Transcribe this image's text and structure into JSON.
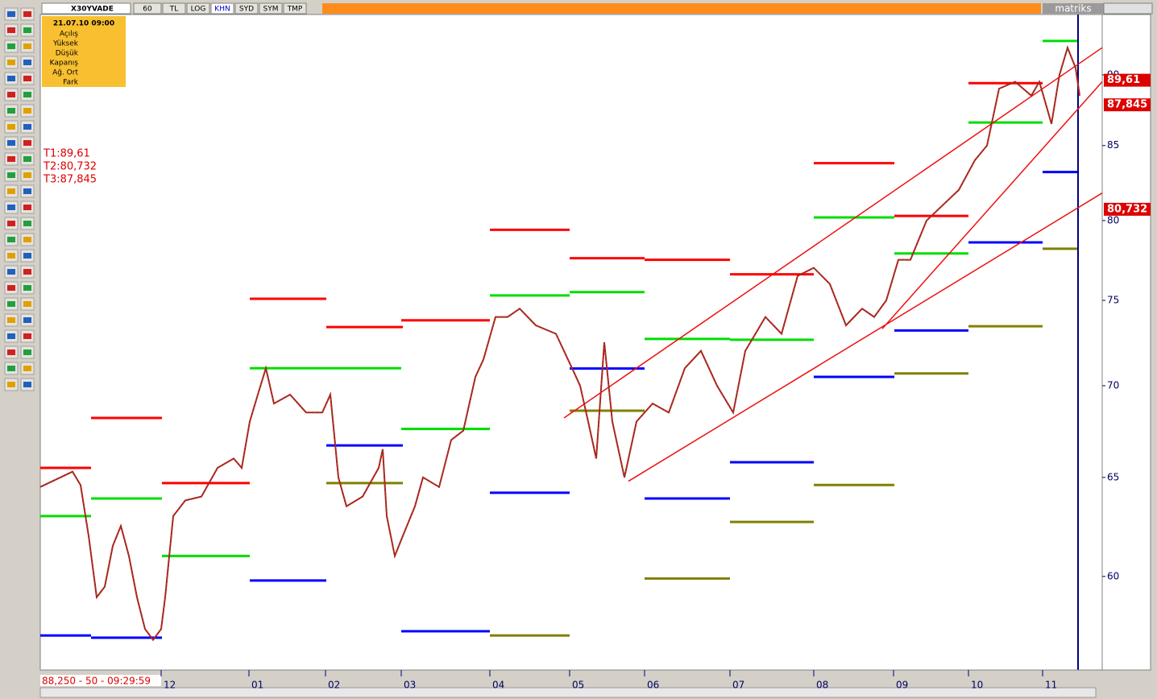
{
  "toolbar": {
    "symbol": "X30YVADE",
    "buttons": [
      "60",
      "TL",
      "LOG",
      "KHN",
      "SYD",
      "SYM",
      "TMP"
    ],
    "brand": "matriks"
  },
  "info_box": {
    "date": "21.07.10 09:00",
    "labels": [
      "Açılış",
      "Yüksek",
      "Düşük",
      "Kapanış",
      "Ağ. Ort",
      "Fark"
    ]
  },
  "targets": [
    "T1:89,61",
    "T2:80,732",
    "T3:87,845"
  ],
  "status": "88,250 - 50 - 09:29:59",
  "chart_data": {
    "type": "line",
    "log": true,
    "xlim": [
      0,
      1318
    ],
    "ylim": [
      55.7,
      94.5
    ],
    "yticks": [
      60,
      65,
      70,
      75,
      80,
      85,
      90
    ],
    "xticks": [
      {
        "value": 150,
        "label": "12"
      },
      {
        "value": 259,
        "label": "01"
      },
      {
        "value": 354,
        "label": "02"
      },
      {
        "value": 448,
        "label": "03"
      },
      {
        "value": 558,
        "label": "04"
      },
      {
        "value": 657,
        "label": "05"
      },
      {
        "value": 750,
        "label": "06"
      },
      {
        "value": 856,
        "label": "07"
      },
      {
        "value": 960,
        "label": "08"
      },
      {
        "value": 1059,
        "label": "09"
      },
      {
        "value": 1152,
        "label": "10"
      },
      {
        "value": 1244,
        "label": "11"
      }
    ],
    "series": [
      {
        "color": "#cc1010",
        "x": [
          0,
          40,
          50,
          60,
          70,
          80,
          90,
          100,
          110,
          120,
          130,
          140,
          150,
          155,
          165,
          180,
          200,
          220,
          240,
          250,
          260,
          270,
          280,
          290,
          310,
          330,
          350,
          360,
          370,
          380,
          400,
          420,
          425,
          430,
          440,
          450,
          465,
          475,
          495,
          510,
          525,
          540,
          550,
          565,
          580,
          595,
          615,
          640,
          660,
          670,
          680,
          690,
          700,
          710,
          725,
          740,
          760,
          780,
          800,
          820,
          840,
          860,
          875,
          900,
          920,
          940,
          960,
          980,
          1000,
          1020,
          1035,
          1050,
          1065,
          1080,
          1100,
          1120,
          1140,
          1160,
          1175,
          1190,
          1210,
          1230,
          1240,
          1250,
          1255,
          1265,
          1275,
          1285,
          1290
        ],
        "values": [
          64.5,
          65.3,
          64.6,
          62,
          59,
          59.5,
          61.5,
          62.5,
          61,
          59,
          57.5,
          57,
          57.5,
          59,
          63,
          63.8,
          64,
          65.5,
          66,
          65.5,
          68,
          69.5,
          71,
          69,
          69.5,
          68.5,
          68.5,
          69.5,
          65,
          63.5,
          64,
          65.5,
          66.5,
          63,
          61,
          62,
          63.5,
          65,
          64.5,
          67,
          67.5,
          70.5,
          71.5,
          74,
          74,
          74.5,
          73.5,
          73,
          71,
          70,
          68,
          66,
          72.5,
          68,
          65,
          68,
          69,
          68.5,
          71,
          72,
          70,
          68.5,
          72,
          74,
          73,
          76.5,
          77,
          76,
          73.5,
          74.5,
          74,
          75,
          77.5,
          77.5,
          80,
          81,
          82,
          84,
          85,
          89,
          89.5,
          88.5,
          89.5,
          87.5,
          86.5,
          90,
          92,
          90.5,
          88.5
        ]
      }
    ],
    "levels": [
      {
        "x": [
          0,
          63
        ],
        "value": 65.5,
        "color": "#ff0000"
      },
      {
        "x": [
          0,
          63
        ],
        "value": 63.0,
        "color": "#00dd00"
      },
      {
        "x": [
          0,
          63
        ],
        "value": 57.2,
        "color": "#0000ff"
      },
      {
        "x": [
          63,
          151
        ],
        "value": 68.2,
        "color": "#ff0000"
      },
      {
        "x": [
          63,
          151
        ],
        "value": 63.9,
        "color": "#00dd00"
      },
      {
        "x": [
          63,
          151
        ],
        "value": 57.1,
        "color": "#0000ff"
      },
      {
        "x": [
          151,
          260
        ],
        "value": 64.7,
        "color": "#ff0000"
      },
      {
        "x": [
          151,
          260
        ],
        "value": 61.0,
        "color": "#00dd00"
      },
      {
        "x": [
          260,
          355
        ],
        "value": 75.1,
        "color": "#ff0000"
      },
      {
        "x": [
          260,
          448
        ],
        "value": 71.0,
        "color": "#00dd00"
      },
      {
        "x": [
          260,
          355
        ],
        "value": 59.8,
        "color": "#0000ff"
      },
      {
        "x": [
          355,
          450
        ],
        "value": 73.4,
        "color": "#ff0000"
      },
      {
        "x": [
          355,
          450
        ],
        "value": 66.7,
        "color": "#0000ff"
      },
      {
        "x": [
          355,
          450
        ],
        "value": 64.7,
        "color": "#808000"
      },
      {
        "x": [
          448,
          558
        ],
        "value": 73.8,
        "color": "#ff0000"
      },
      {
        "x": [
          448,
          558
        ],
        "value": 67.6,
        "color": "#00dd00"
      },
      {
        "x": [
          448,
          558
        ],
        "value": 57.4,
        "color": "#0000ff"
      },
      {
        "x": [
          558,
          657
        ],
        "value": 79.4,
        "color": "#ff0000"
      },
      {
        "x": [
          558,
          657
        ],
        "value": 75.3,
        "color": "#00dd00"
      },
      {
        "x": [
          558,
          657
        ],
        "value": 64.2,
        "color": "#0000ff"
      },
      {
        "x": [
          558,
          657
        ],
        "value": 57.2,
        "color": "#808000"
      },
      {
        "x": [
          657,
          750
        ],
        "value": 77.6,
        "color": "#ff0000"
      },
      {
        "x": [
          657,
          750
        ],
        "value": 75.5,
        "color": "#00dd00"
      },
      {
        "x": [
          657,
          750
        ],
        "value": 70.98,
        "color": "#0000ff"
      },
      {
        "x": [
          657,
          750
        ],
        "value": 68.6,
        "color": "#808000"
      },
      {
        "x": [
          750,
          856
        ],
        "value": 77.5,
        "color": "#ff0000"
      },
      {
        "x": [
          750,
          856
        ],
        "value": 72.7,
        "color": "#00dd00"
      },
      {
        "x": [
          750,
          856
        ],
        "value": 63.9,
        "color": "#0000ff"
      },
      {
        "x": [
          750,
          856
        ],
        "value": 59.9,
        "color": "#808000"
      },
      {
        "x": [
          856,
          960
        ],
        "value": 76.6,
        "color": "#ff0000"
      },
      {
        "x": [
          856,
          960
        ],
        "value": 72.65,
        "color": "#00dd00"
      },
      {
        "x": [
          856,
          960
        ],
        "value": 65.8,
        "color": "#0000ff"
      },
      {
        "x": [
          856,
          960
        ],
        "value": 62.7,
        "color": "#808000"
      },
      {
        "x": [
          960,
          1060
        ],
        "value": 83.8,
        "color": "#ff0000"
      },
      {
        "x": [
          960,
          1060
        ],
        "value": 80.2,
        "color": "#00dd00"
      },
      {
        "x": [
          960,
          1060
        ],
        "value": 70.5,
        "color": "#0000ff"
      },
      {
        "x": [
          960,
          1060
        ],
        "value": 64.6,
        "color": "#808000"
      },
      {
        "x": [
          1060,
          1152
        ],
        "value": 80.3,
        "color": "#ff0000"
      },
      {
        "x": [
          1060,
          1152
        ],
        "value": 77.9,
        "color": "#00dd00"
      },
      {
        "x": [
          1060,
          1152
        ],
        "value": 73.2,
        "color": "#0000ff"
      },
      {
        "x": [
          1060,
          1152
        ],
        "value": 70.7,
        "color": "#808000"
      },
      {
        "x": [
          1152,
          1244
        ],
        "value": 89.4,
        "color": "#ff0000"
      },
      {
        "x": [
          1152,
          1244
        ],
        "value": 86.6,
        "color": "#00dd00"
      },
      {
        "x": [
          1152,
          1244
        ],
        "value": 78.6,
        "color": "#0000ff"
      },
      {
        "x": [
          1152,
          1244
        ],
        "value": 73.45,
        "color": "#808000"
      },
      {
        "x": [
          1244,
          1287
        ],
        "value": 92.5,
        "color": "#00dd00"
      },
      {
        "x": [
          1244,
          1287
        ],
        "value": 83.2,
        "color": "#0000ff"
      },
      {
        "x": [
          1244,
          1287
        ],
        "value": 78.2,
        "color": "#808000"
      }
    ],
    "trendlines": [
      {
        "x": [
          730,
          1318
        ],
        "values": [
          64.8,
          81.8
        ]
      },
      {
        "x": [
          650,
          1318
        ],
        "values": [
          68.2,
          92.0
        ]
      },
      {
        "x": [
          1045,
          1318
        ],
        "values": [
          73.3,
          89.5
        ]
      }
    ],
    "price_labels": [
      {
        "value": 89.61,
        "label": "89,61"
      },
      {
        "value": 87.845,
        "label": "87,845"
      },
      {
        "value": 80.732,
        "label": "80,732"
      }
    ]
  }
}
